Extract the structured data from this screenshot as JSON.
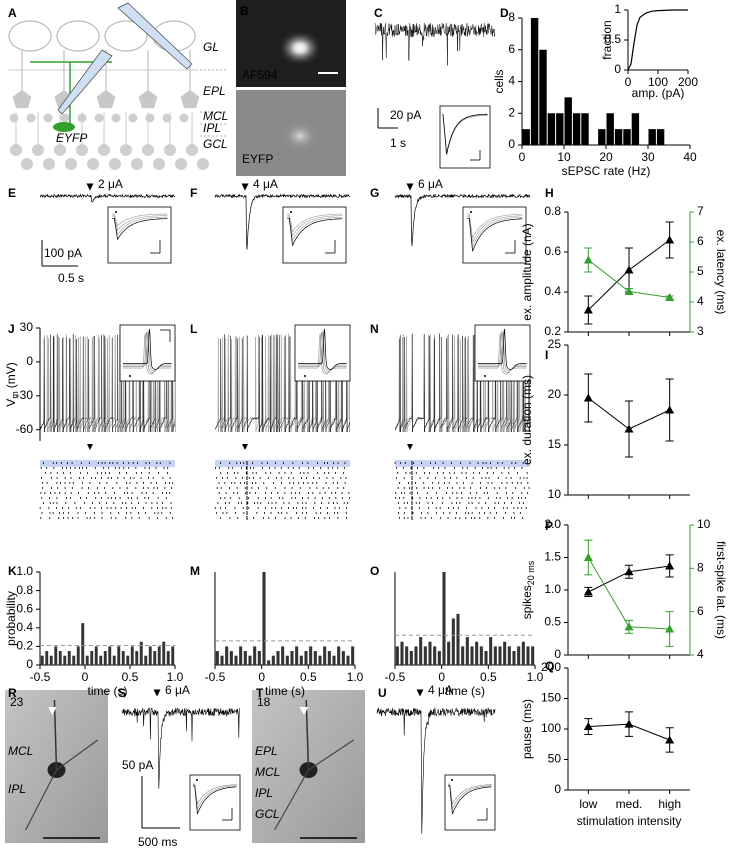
{
  "panel_labels": [
    "A",
    "B",
    "C",
    "D",
    "E",
    "F",
    "G",
    "H",
    "I",
    "J",
    "K",
    "L",
    "M",
    "N",
    "O",
    "P",
    "Q",
    "R",
    "S",
    "T",
    "U"
  ],
  "diagram": {
    "layers": [
      "GL",
      "EPL",
      "MCL",
      "IPL",
      "GCL"
    ],
    "cell": "EYFP"
  },
  "imaging": {
    "dye": "AF594",
    "reporter": "EYFP"
  },
  "recording": {
    "current_scale": "20 pA",
    "time_scale": "1 s"
  },
  "evoked": {
    "stimuli": [
      "2 μA",
      "4 μA",
      "6 μA"
    ],
    "current_scale": "100 pA",
    "time_scale": "0.5 s"
  },
  "examples": {
    "cells": [
      {
        "number": "23",
        "layers": [
          "MCL",
          "IPL"
        ],
        "stimulus": "6 μA",
        "current_scale": "50 pA",
        "time_scale": "500 ms"
      },
      {
        "number": "18",
        "layers": [
          "EPL",
          "MCL",
          "IPL",
          "GCL"
        ],
        "stimulus": "4 μA"
      }
    ]
  },
  "chart_data": [
    {
      "type": "histogram",
      "xlabel": "sEPSC rate (Hz)",
      "ylabel": "cells",
      "color": "#000000",
      "bins": [
        0,
        2,
        4,
        6,
        8,
        10,
        12,
        14,
        16,
        18,
        20,
        22,
        24,
        26,
        28,
        30,
        32,
        34
      ],
      "values": [
        1,
        8,
        6,
        2,
        2,
        3,
        2,
        2,
        0,
        1,
        2,
        1,
        1,
        2,
        0,
        1,
        1
      ],
      "xlim": [
        0,
        40
      ],
      "xticks": [
        0,
        10,
        20,
        30,
        40
      ],
      "ylim": [
        0,
        8
      ],
      "yticks": [
        0,
        2,
        4,
        6,
        8
      ]
    },
    {
      "type": "line",
      "xlabel": "amp. (pA)",
      "ylabel": "fraction",
      "color": "#000000",
      "x": [
        0,
        10,
        20,
        30,
        40,
        60,
        80,
        100,
        150,
        200
      ],
      "values": [
        0,
        0.1,
        0.45,
        0.75,
        0.88,
        0.95,
        0.98,
        0.99,
        1,
        1
      ],
      "xlim": [
        0,
        200
      ],
      "xticks": [
        0,
        100,
        200
      ],
      "ylim": [
        0,
        1
      ],
      "yticks": [
        0,
        0.5,
        1
      ]
    },
    {
      "type": "line",
      "categories": [
        null,
        null,
        null
      ],
      "ylabel": "ex. amplitude (nA)",
      "y2label": "ex. latency (ms)",
      "ylim": [
        0.2,
        0.8
      ],
      "yticks": [
        0.2,
        0.4,
        0.6,
        0.8
      ],
      "y2lim": [
        3,
        7
      ],
      "y2ticks": [
        3,
        4,
        5,
        6,
        7
      ],
      "series": [
        {
          "color": "#000000",
          "values": [
            0.31,
            0.51,
            0.66
          ],
          "errors": [
            0.07,
            0.11,
            0.09
          ]
        },
        {
          "color": "#33a02c",
          "axis": "y2",
          "values": [
            5.4,
            4.35,
            4.15
          ],
          "errors": [
            0.4,
            0.1,
            0.05
          ]
        }
      ]
    },
    {
      "type": "line",
      "categories": [
        null,
        null,
        null
      ],
      "ylabel": "ex. duration (ms)",
      "ylim": [
        10,
        25
      ],
      "yticks": [
        10,
        15,
        20,
        25
      ],
      "series": [
        {
          "color": "#000000",
          "values": [
            19.7,
            16.6,
            18.5
          ],
          "errors": [
            2.4,
            2.8,
            3.1
          ]
        }
      ]
    },
    {
      "type": "line",
      "categories": [
        null,
        null,
        null
      ],
      "ylabel": "spikes",
      "ylabel_sub": "20 ms",
      "y2label": "first-spike lat. (ms)",
      "ylim": [
        0,
        2
      ],
      "yticks": [
        0,
        0.5,
        {
          "value": 1,
          "label": "1.0"
        },
        1.5,
        {
          "value": 2,
          "label": "2.0"
        }
      ],
      "y2lim": [
        4,
        10
      ],
      "y2ticks": [
        4,
        6,
        8,
        10
      ],
      "series": [
        {
          "color": "#000000",
          "values": [
            0.97,
            1.28,
            1.37
          ],
          "errors": [
            0.07,
            0.1,
            0.17
          ]
        },
        {
          "color": "#33a02c",
          "axis": "y2",
          "values": [
            8.5,
            5.3,
            5.2
          ],
          "errors": [
            0.8,
            0.3,
            0.8
          ]
        }
      ]
    },
    {
      "type": "line",
      "categories": [
        "low",
        "med.",
        "high"
      ],
      "xlabel": "stimulation intensity",
      "ylabel": "pause (ms)",
      "ylim": [
        0,
        200
      ],
      "yticks": [
        0,
        50,
        100,
        150,
        200
      ],
      "series": [
        {
          "color": "#000000",
          "values": [
            104,
            108,
            82
          ],
          "errors": [
            13,
            20,
            20
          ]
        }
      ]
    },
    {
      "type": "histogram",
      "xlabel": "time (s)",
      "ylabel": "probability",
      "color": "#333333",
      "threshold": 0.21,
      "bins": [
        -0.5,
        -0.45,
        -0.4,
        -0.35,
        -0.3,
        -0.25,
        -0.2,
        -0.15,
        -0.1,
        -0.05,
        0,
        0.05,
        0.1,
        0.15,
        0.2,
        0.25,
        0.3,
        0.35,
        0.4,
        0.45,
        0.5,
        0.55,
        0.6,
        0.65,
        0.7,
        0.75,
        0.8,
        0.85,
        0.9,
        0.95,
        1
      ],
      "values": [
        0.1,
        0.15,
        0.1,
        0.2,
        0.15,
        0.1,
        0.15,
        0.1,
        0.2,
        0.45,
        0.1,
        0.15,
        0.2,
        0.1,
        0.15,
        0.2,
        0.1,
        0.2,
        0.15,
        0.1,
        0.2,
        0.15,
        0.25,
        0.1,
        0.2,
        0.15,
        0.2,
        0.25,
        0.15,
        0.2
      ],
      "xlim": [
        -0.5,
        1
      ],
      "xticks": [
        -0.5,
        0,
        0.5,
        {
          "value": 1,
          "label": "1.0"
        }
      ],
      "ylim": [
        0,
        1
      ],
      "yticks": [
        0,
        0.2,
        0.4,
        0.6,
        0.8,
        {
          "value": 1,
          "label": "1.0"
        }
      ]
    },
    {
      "type": "histogram",
      "xlabel": "time (s)",
      "color": "#333333",
      "threshold": 0.26,
      "bins": [
        -0.5,
        -0.45,
        -0.4,
        -0.35,
        -0.3,
        -0.25,
        -0.2,
        -0.15,
        -0.1,
        -0.05,
        0,
        0.05,
        0.1,
        0.15,
        0.2,
        0.25,
        0.3,
        0.35,
        0.4,
        0.45,
        0.5,
        0.55,
        0.6,
        0.65,
        0.7,
        0.75,
        0.8,
        0.85,
        0.9,
        0.95,
        1
      ],
      "values": [
        0.15,
        0.1,
        0.2,
        0.15,
        0.1,
        0.2,
        0.15,
        0.1,
        0.2,
        0.15,
        1,
        0.05,
        0.1,
        0.15,
        0.2,
        0.1,
        0.15,
        0.2,
        0.1,
        0.15,
        0.2,
        0.15,
        0.1,
        0.2,
        0.15,
        0.1,
        0.2,
        0.15,
        0.1,
        0.2
      ],
      "xlim": [
        -0.5,
        1
      ],
      "xticks": [
        -0.5,
        0,
        0.5,
        {
          "value": 1,
          "label": "1.0"
        }
      ],
      "ylim": [
        0,
        1
      ]
    },
    {
      "type": "histogram",
      "xlabel": "time (s)",
      "color": "#333333",
      "threshold": 0.32,
      "bins": [
        -0.5,
        -0.45,
        -0.4,
        -0.35,
        -0.3,
        -0.25,
        -0.2,
        -0.15,
        -0.1,
        -0.05,
        0,
        0.05,
        0.1,
        0.15,
        0.2,
        0.25,
        0.3,
        0.35,
        0.4,
        0.45,
        0.5,
        0.55,
        0.6,
        0.65,
        0.7,
        0.75,
        0.8,
        0.85,
        0.9,
        0.95,
        1
      ],
      "values": [
        0.2,
        0.25,
        0.2,
        0.15,
        0.2,
        0.3,
        0.2,
        0.25,
        0.2,
        0.15,
        1,
        0.25,
        0.5,
        0.55,
        0.2,
        0.3,
        0.2,
        0.25,
        0.2,
        0.15,
        0.3,
        0.2,
        0.2,
        0.25,
        0.2,
        0.15,
        0.2,
        0.25,
        0.2,
        0.2
      ],
      "xlim": [
        -0.5,
        1
      ],
      "xticks": [
        -0.5,
        0,
        0.5,
        {
          "value": 1,
          "label": "1.0"
        }
      ],
      "ylim": [
        0,
        1
      ]
    },
    {
      "type": "trace",
      "ylabel": "V",
      "ylabel_sub": "m",
      "ylabel_unit": "(mV)",
      "ylim": [
        -70,
        30
      ],
      "yticks": [
        30,
        0,
        -30,
        -60
      ]
    }
  ]
}
